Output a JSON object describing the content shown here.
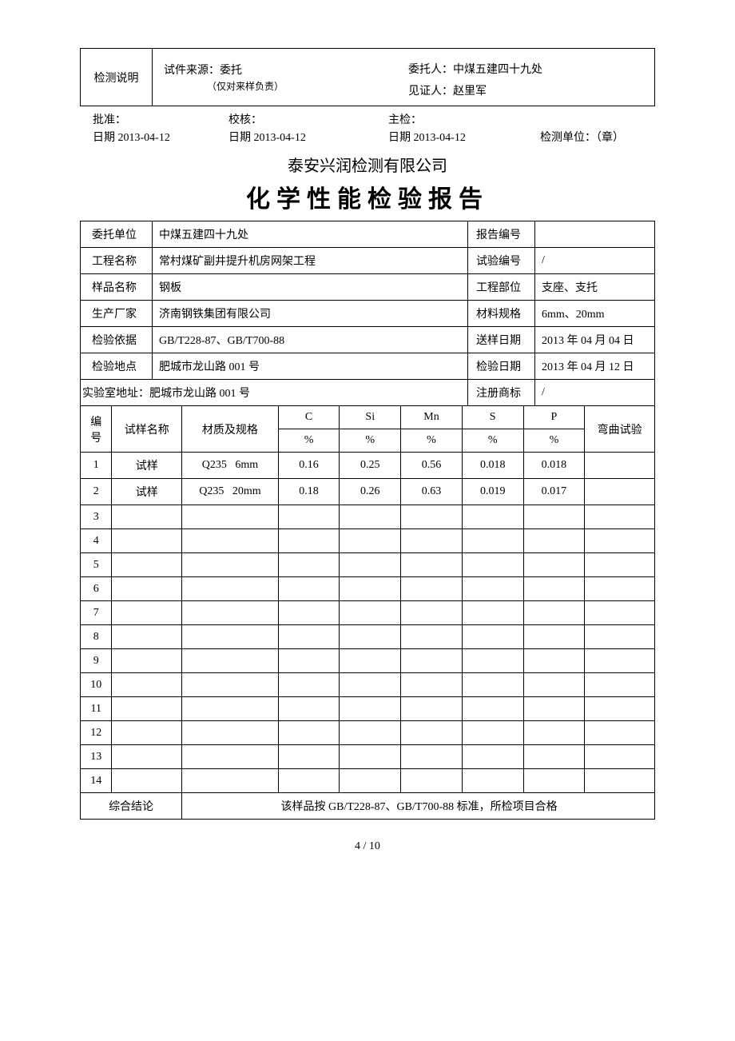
{
  "topBox": {
    "leftLabel": "检测说明",
    "sourceLabel": "试件来源：",
    "sourceValue": "委托",
    "sourceNote": "（仅对来样负责）",
    "entrusterLabel": "委托人：",
    "entrusterValue": "中煤五建四十九处",
    "witnessLabel": "见证人：",
    "witnessValue": "赵里军"
  },
  "signRow": {
    "approve": "批准：",
    "check": "校核：",
    "inspect": "主检：",
    "dateA": "日期  2013-04-12",
    "dateB": "日期 2013-04-12",
    "dateC": "日期 2013-04-12",
    "unit": "检测单位：（章）"
  },
  "company": "泰安兴润检测有限公司",
  "title": "化学性能检验报告",
  "info": {
    "entrustUnitLabel": "委托单位",
    "entrustUnit": "中煤五建四十九处",
    "reportNoLabel": "报告编号",
    "reportNo": "",
    "projectNameLabel": "工程名称",
    "projectName": "常村煤矿副井提升机房网架工程",
    "testNoLabel": "试验编号",
    "testNo": "/",
    "sampleNameLabel": "样品名称",
    "sampleName": "钢板",
    "projectPartLabel": "工程部位",
    "projectPart": "支座、支托",
    "manufacturerLabel": "生产厂家",
    "manufacturer": "济南钢铁集团有限公司",
    "specLabel": "材料规格",
    "spec": "6mm、20mm",
    "basisLabel": "检验依据",
    "basis": "GB/T228-87、GB/T700-88",
    "sendDateLabel": "送样日期",
    "sendDate": "2013 年 04 月 04 日",
    "locationLabel": "检验地点",
    "location": "肥城市龙山路 001 号",
    "testDateLabel": "检验日期",
    "testDate": "2013 年 04 月 12 日",
    "labAddrLabel": "实验室地址：",
    "labAddr": "肥城市龙山路 001 号",
    "trademarkLabel": "注册商标",
    "trademark": "/"
  },
  "headers": {
    "num": "编号",
    "sampleName": "试样名称",
    "matSpec": "材质及规格",
    "c": "C",
    "si": "Si",
    "mn": "Mn",
    "s": "S",
    "p": "P",
    "bend": "弯曲试验",
    "pct": "%"
  },
  "rows": [
    {
      "n": "1",
      "name": "试样",
      "mat": "Q235   6mm",
      "c": "0.16",
      "si": "0.25",
      "mn": "0.56",
      "s": "0.018",
      "p": "0.018",
      "bend": ""
    },
    {
      "n": "2",
      "name": "试样",
      "mat": "Q235   20mm",
      "c": "0.18",
      "si": "0.26",
      "mn": "0.63",
      "s": "0.019",
      "p": "0.017",
      "bend": ""
    },
    {
      "n": "3",
      "name": "",
      "mat": "",
      "c": "",
      "si": "",
      "mn": "",
      "s": "",
      "p": "",
      "bend": ""
    },
    {
      "n": "4",
      "name": "",
      "mat": "",
      "c": "",
      "si": "",
      "mn": "",
      "s": "",
      "p": "",
      "bend": ""
    },
    {
      "n": "5",
      "name": "",
      "mat": "",
      "c": "",
      "si": "",
      "mn": "",
      "s": "",
      "p": "",
      "bend": ""
    },
    {
      "n": "6",
      "name": "",
      "mat": "",
      "c": "",
      "si": "",
      "mn": "",
      "s": "",
      "p": "",
      "bend": ""
    },
    {
      "n": "7",
      "name": "",
      "mat": "",
      "c": "",
      "si": "",
      "mn": "",
      "s": "",
      "p": "",
      "bend": ""
    },
    {
      "n": "8",
      "name": "",
      "mat": "",
      "c": "",
      "si": "",
      "mn": "",
      "s": "",
      "p": "",
      "bend": ""
    },
    {
      "n": "9",
      "name": "",
      "mat": "",
      "c": "",
      "si": "",
      "mn": "",
      "s": "",
      "p": "",
      "bend": ""
    },
    {
      "n": "10",
      "name": "",
      "mat": "",
      "c": "",
      "si": "",
      "mn": "",
      "s": "",
      "p": "",
      "bend": ""
    },
    {
      "n": "11",
      "name": "",
      "mat": "",
      "c": "",
      "si": "",
      "mn": "",
      "s": "",
      "p": "",
      "bend": ""
    },
    {
      "n": "12",
      "name": "",
      "mat": "",
      "c": "",
      "si": "",
      "mn": "",
      "s": "",
      "p": "",
      "bend": ""
    },
    {
      "n": "13",
      "name": "",
      "mat": "",
      "c": "",
      "si": "",
      "mn": "",
      "s": "",
      "p": "",
      "bend": ""
    },
    {
      "n": "14",
      "name": "",
      "mat": "",
      "c": "",
      "si": "",
      "mn": "",
      "s": "",
      "p": "",
      "bend": ""
    }
  ],
  "conclusion": {
    "label": "综合结论",
    "value": "该样品按 GB/T228-87、GB/T700-88 标准，所检项目合格"
  },
  "pageNum": "4  /  10"
}
